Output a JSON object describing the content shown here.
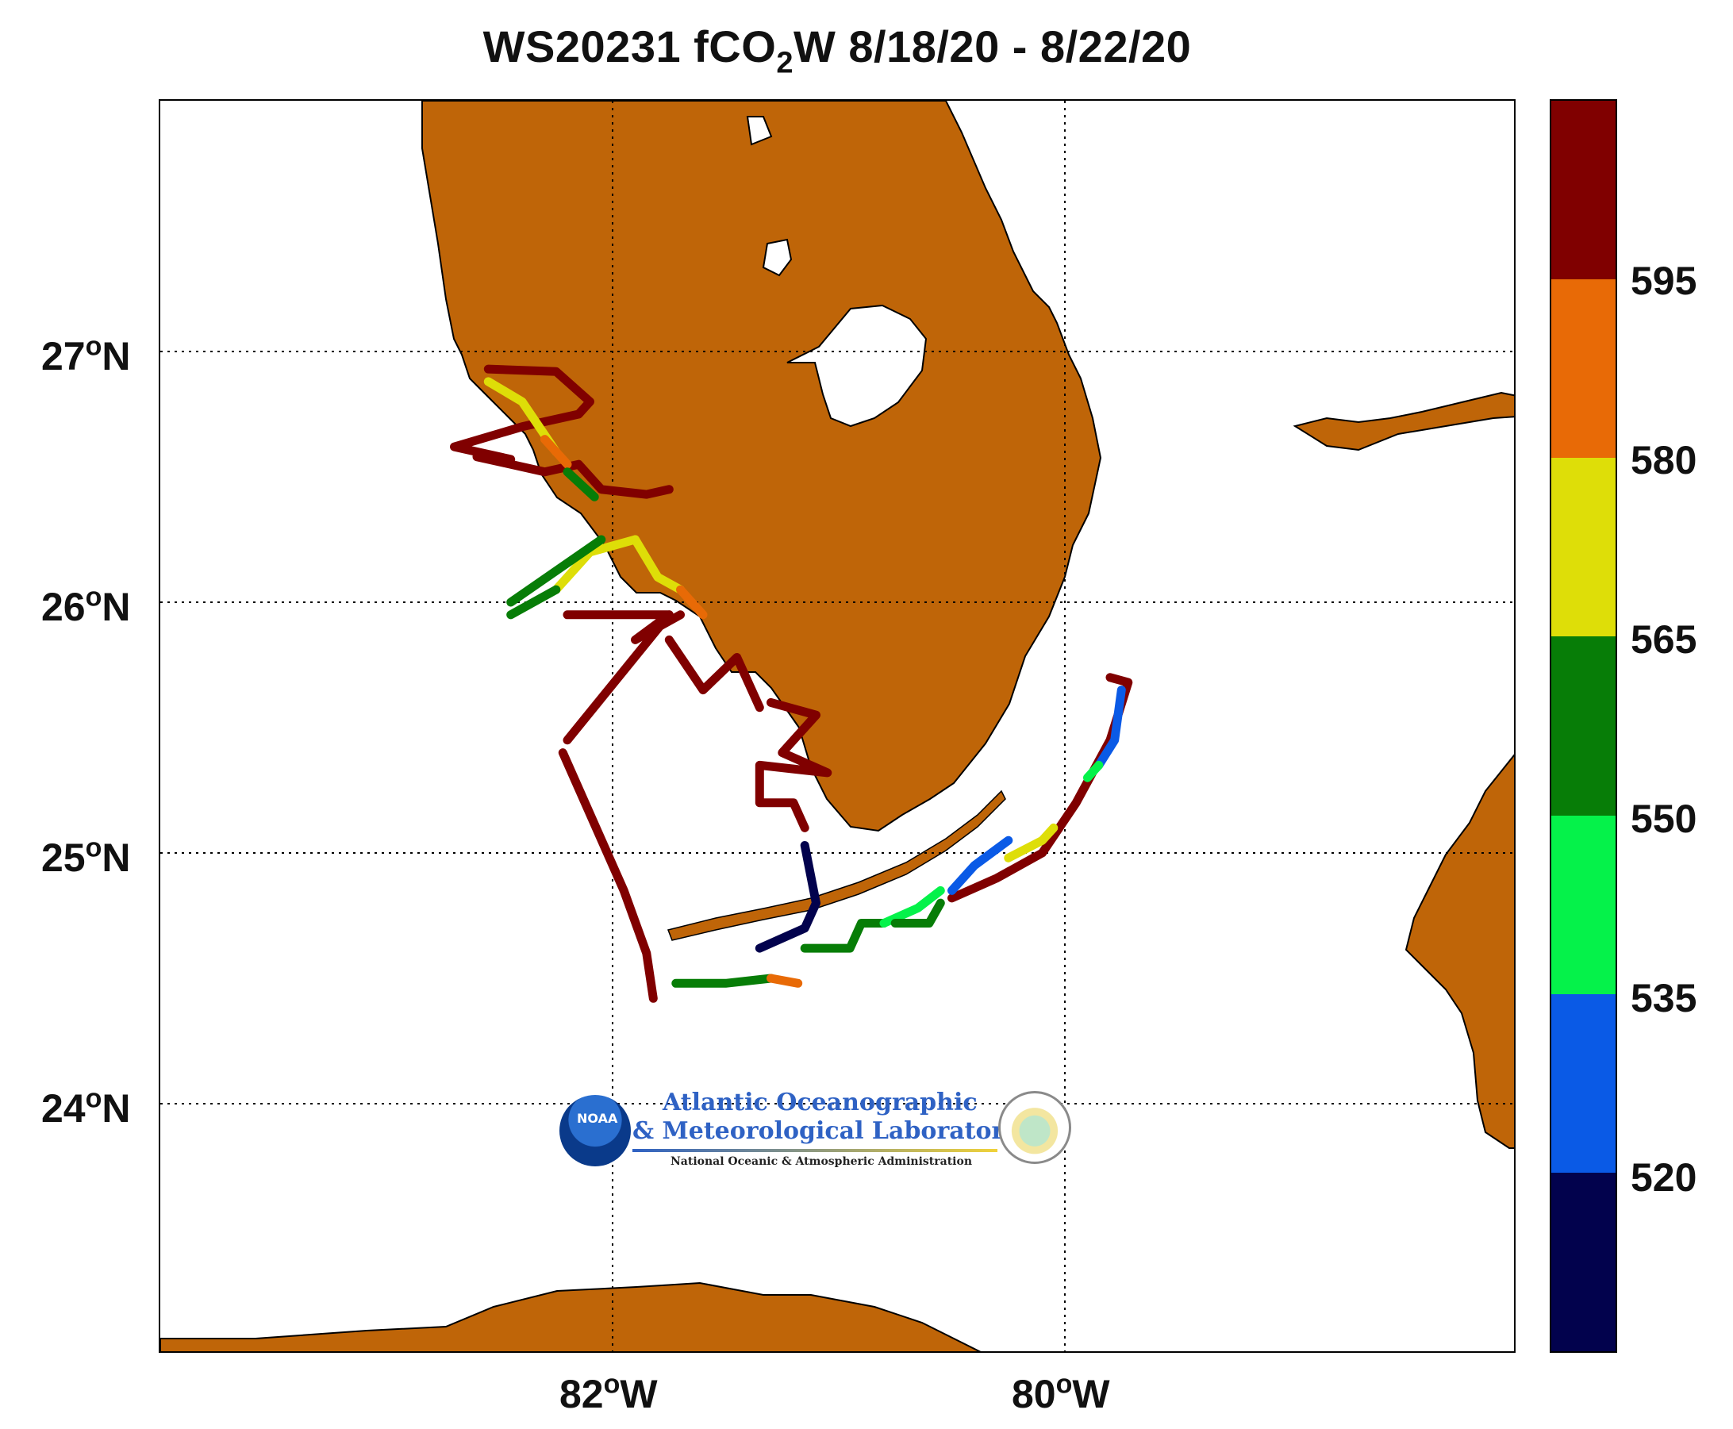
{
  "title": {
    "prefix": "WS20231 fCO",
    "subscript": "2",
    "suffix": "W 8/18/20 - 8/22/20"
  },
  "axes": {
    "lat_labels": [
      {
        "deg": "27",
        "sup": "o",
        "hemi": "N"
      },
      {
        "deg": "26",
        "sup": "o",
        "hemi": "N"
      },
      {
        "deg": "25",
        "sup": "o",
        "hemi": "N"
      },
      {
        "deg": "24",
        "sup": "o",
        "hemi": "N"
      }
    ],
    "lon_labels": [
      {
        "deg": "82",
        "sup": "o",
        "hemi": "W"
      },
      {
        "deg": "80",
        "sup": "o",
        "hemi": "W"
      }
    ],
    "lon_range": [
      -84.0,
      -78.0
    ],
    "lat_range": [
      23.0,
      28.0
    ],
    "grid": "dotted"
  },
  "colors": {
    "land": "#bf6508",
    "water": "#ffffff",
    "grid": "#000000"
  },
  "colorbar": {
    "ticks": [
      "595",
      "580",
      "565",
      "550",
      "535",
      "520"
    ],
    "segments_top_to_bottom": [
      "#800000",
      "#e86a06",
      "#dede08",
      "#077d07",
      "#05f24a",
      "#0a5ae6",
      "#02024d"
    ]
  },
  "logo": {
    "line1": "Atlantic Oceanographic",
    "line2": "& Meteorological Laboratory",
    "line3": "National Oceanic & Atmospheric Administration",
    "badge": "NOAA"
  },
  "tracks": [
    {
      "color": "#800000",
      "points": [
        [
          -82.55,
          26.93
        ],
        [
          -82.25,
          26.92
        ],
        [
          -82.1,
          26.8
        ],
        [
          -82.15,
          26.75
        ],
        [
          -82.4,
          26.7
        ],
        [
          -82.7,
          26.62
        ],
        [
          -82.45,
          26.57
        ],
        [
          -82.6,
          26.58
        ],
        [
          -82.3,
          26.52
        ],
        [
          -82.15,
          26.55
        ],
        [
          -82.05,
          26.45
        ],
        [
          -81.85,
          26.43
        ],
        [
          -81.75,
          26.45
        ]
      ]
    },
    {
      "color": "#800000",
      "points": [
        [
          -82.2,
          25.95
        ],
        [
          -81.75,
          25.95
        ],
        [
          -81.9,
          25.85
        ],
        [
          -81.7,
          25.95
        ]
      ]
    },
    {
      "color": "#800000",
      "points": [
        [
          -81.75,
          25.95
        ],
        [
          -82.2,
          25.45
        ]
      ]
    },
    {
      "color": "#800000",
      "points": [
        [
          -82.22,
          25.4
        ],
        [
          -81.95,
          24.85
        ],
        [
          -81.85,
          24.6
        ],
        [
          -81.82,
          24.42
        ]
      ]
    },
    {
      "color": "#800000",
      "points": [
        [
          -81.75,
          25.85
        ],
        [
          -81.6,
          25.65
        ],
        [
          -81.45,
          25.78
        ],
        [
          -81.35,
          25.58
        ]
      ]
    },
    {
      "color": "#800000",
      "points": [
        [
          -81.3,
          25.6
        ],
        [
          -81.1,
          25.55
        ],
        [
          -81.25,
          25.4
        ],
        [
          -81.05,
          25.32
        ],
        [
          -81.35,
          25.35
        ],
        [
          -81.35,
          25.2
        ],
        [
          -81.2,
          25.2
        ],
        [
          -81.15,
          25.1
        ]
      ]
    },
    {
      "color": "#800000",
      "points": [
        [
          -79.8,
          25.7
        ],
        [
          -79.72,
          25.68
        ],
        [
          -79.8,
          25.45
        ],
        [
          -79.95,
          25.2
        ],
        [
          -80.1,
          25.0
        ],
        [
          -80.3,
          24.9
        ],
        [
          -80.5,
          24.82
        ]
      ]
    },
    {
      "color": "#dede08",
      "points": [
        [
          -82.55,
          26.88
        ],
        [
          -82.4,
          26.8
        ],
        [
          -82.25,
          26.6
        ]
      ]
    },
    {
      "color": "#e86a06",
      "points": [
        [
          -82.3,
          26.65
        ],
        [
          -82.2,
          26.55
        ]
      ]
    },
    {
      "color": "#077d07",
      "points": [
        [
          -82.2,
          26.52
        ],
        [
          -82.08,
          26.42
        ]
      ]
    },
    {
      "color": "#dede08",
      "points": [
        [
          -81.9,
          26.25
        ],
        [
          -82.1,
          26.2
        ],
        [
          -82.25,
          26.05
        ]
      ]
    },
    {
      "color": "#077d07",
      "points": [
        [
          -82.25,
          26.05
        ],
        [
          -82.45,
          25.95
        ]
      ]
    },
    {
      "color": "#dede08",
      "points": [
        [
          -81.9,
          26.25
        ],
        [
          -81.8,
          26.1
        ],
        [
          -81.7,
          26.05
        ]
      ]
    },
    {
      "color": "#e86a06",
      "points": [
        [
          -81.7,
          26.05
        ],
        [
          -81.6,
          25.95
        ]
      ]
    },
    {
      "color": "#077d07",
      "points": [
        [
          -82.45,
          26.0
        ],
        [
          -82.05,
          26.25
        ]
      ]
    },
    {
      "color": "#02024d",
      "points": [
        [
          -81.15,
          25.03
        ],
        [
          -81.1,
          24.8
        ],
        [
          -81.15,
          24.7
        ],
        [
          -81.35,
          24.62
        ]
      ]
    },
    {
      "color": "#077d07",
      "points": [
        [
          -81.15,
          24.62
        ],
        [
          -80.95,
          24.62
        ],
        [
          -80.9,
          24.72
        ],
        [
          -80.8,
          24.72
        ]
      ]
    },
    {
      "color": "#05f24a",
      "points": [
        [
          -80.8,
          24.72
        ],
        [
          -80.65,
          24.78
        ],
        [
          -80.55,
          24.85
        ]
      ]
    },
    {
      "color": "#0a5ae6",
      "points": [
        [
          -80.5,
          24.85
        ],
        [
          -80.4,
          24.95
        ],
        [
          -80.25,
          25.05
        ]
      ]
    },
    {
      "color": "#dede08",
      "points": [
        [
          -80.25,
          24.98
        ],
        [
          -80.1,
          25.05
        ],
        [
          -80.05,
          25.1
        ]
      ]
    },
    {
      "color": "#0a5ae6",
      "points": [
        [
          -79.75,
          25.65
        ],
        [
          -79.78,
          25.45
        ],
        [
          -79.85,
          25.35
        ]
      ]
    },
    {
      "color": "#05f24a",
      "points": [
        [
          -79.85,
          25.35
        ],
        [
          -79.9,
          25.3
        ]
      ]
    },
    {
      "color": "#077d07",
      "points": [
        [
          -81.72,
          24.48
        ],
        [
          -81.5,
          24.48
        ],
        [
          -81.3,
          24.5
        ]
      ]
    },
    {
      "color": "#e86a06",
      "points": [
        [
          -81.3,
          24.5
        ],
        [
          -81.18,
          24.48
        ]
      ]
    },
    {
      "color": "#077d07",
      "points": [
        [
          -80.75,
          24.72
        ],
        [
          -80.6,
          24.72
        ],
        [
          -80.55,
          24.8
        ]
      ]
    }
  ]
}
